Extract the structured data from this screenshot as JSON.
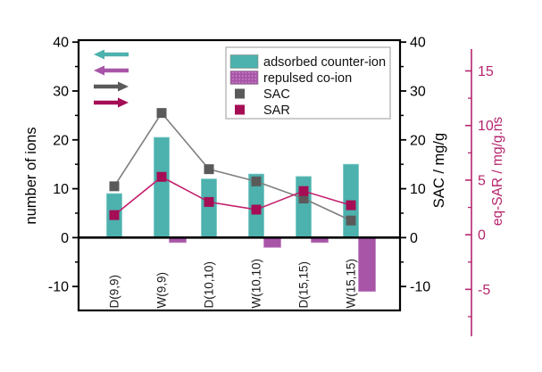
{
  "figure": {
    "background": "#ffffff"
  },
  "chart_data": {
    "type": "bar",
    "title": "",
    "categories": [
      "D(9,9)",
      "W(9,9)",
      "D(10,10)",
      "W(10,10)",
      "D(15,15)",
      "W(15,15)"
    ],
    "bar_series": [
      {
        "name": "adsorbed counter-ion",
        "axis": "ions",
        "color": "#4db1ad",
        "edge_color": "#79c8c4",
        "values": [
          9,
          20.5,
          12,
          13,
          12.5,
          15
        ]
      },
      {
        "name": "repulsed co-ion",
        "axis": "ions",
        "color": "#a855a8",
        "edge_color": "#c287c2",
        "values": [
          0,
          -1,
          0,
          -2,
          -1,
          -11
        ]
      }
    ],
    "line_series": [
      {
        "name": "SAC",
        "axis": "sac",
        "line_color": "#7f7f7f",
        "marker_color": "#5a5a5a",
        "values": [
          10.5,
          25.5,
          14,
          11.5,
          8,
          3.5
        ]
      },
      {
        "name": "SAR",
        "axis": "eq_sar",
        "line_color": "#c2206c",
        "marker_color": "#a50d55",
        "values": [
          1.8,
          5.3,
          3.0,
          2.3,
          4.0,
          2.7
        ]
      }
    ],
    "axes": {
      "left": {
        "title": "number of ions",
        "major_ticks": [
          -10,
          0,
          10,
          20,
          30,
          40
        ],
        "minor_ticks": [
          -5,
          5,
          15,
          25,
          35
        ],
        "range": [
          -14.9,
          40.4
        ],
        "color": "#000000"
      },
      "right": {
        "title": "SAC / mg/g",
        "major_ticks": [
          -10,
          0,
          10,
          20,
          30,
          40
        ],
        "minor_ticks": [
          -5,
          5,
          15,
          25,
          35
        ],
        "range": [
          -14.9,
          40.4
        ],
        "color": "#000000"
      },
      "far_right": {
        "title": "eq-SAR /  mg/g.ns",
        "major_ticks": [
          -5,
          0,
          5,
          10,
          15
        ],
        "minor_ticks": [
          -7.5,
          -2.5,
          2.5,
          7.5,
          12.5
        ],
        "range": [
          -9.3,
          17.0
        ],
        "color": "#b5256d"
      }
    },
    "legend": {
      "position": "top-right-inside",
      "items": [
        {
          "label": "adsorbed counter-ion",
          "swatch": "bar",
          "color": "#4db1ad"
        },
        {
          "label": "repulsed co-ion",
          "swatch": "bar-dotted",
          "color": "#a855a8",
          "dot_color": "#c88fc8"
        },
        {
          "label": "SAC",
          "swatch": "square",
          "color": "#5a5a5a"
        },
        {
          "label": "SAR",
          "swatch": "square",
          "color": "#a50d55"
        }
      ]
    },
    "annotations": {
      "axis_arrows": [
        {
          "direction": "left",
          "color": "#4db1ad"
        },
        {
          "direction": "left",
          "color": "#a855a8"
        },
        {
          "direction": "right",
          "color": "#5a5a5a"
        },
        {
          "direction": "right",
          "color": "#a50d55"
        }
      ]
    },
    "grid": false
  }
}
